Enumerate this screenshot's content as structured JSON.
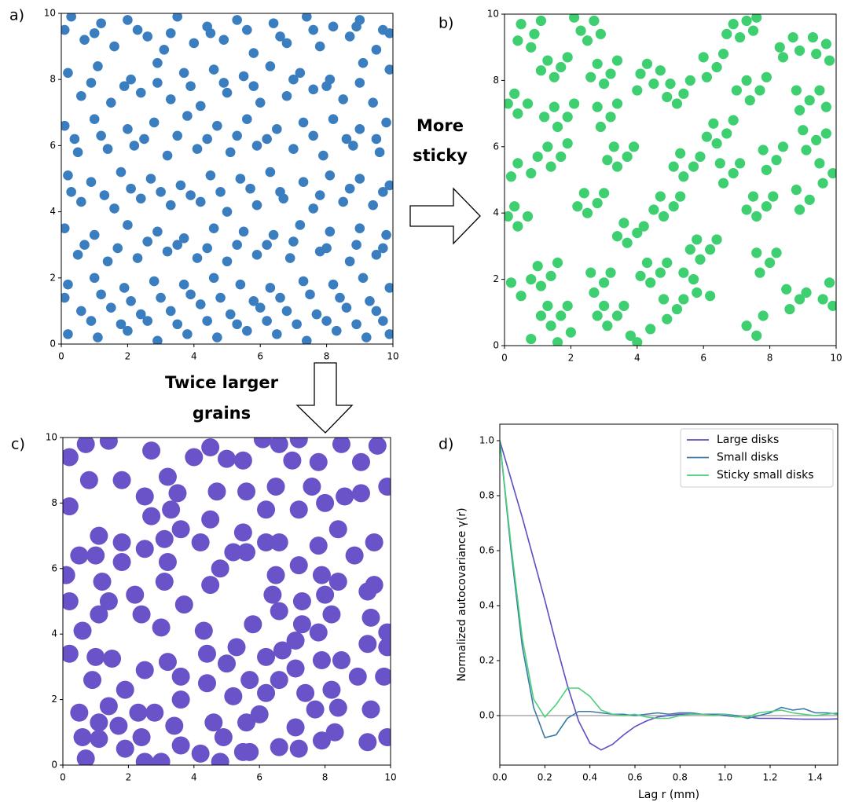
{
  "annotations": [
    [
      "More",
      "sticky"
    ],
    [
      "Twice larger",
      "grains"
    ]
  ],
  "chart_data": [
    {
      "type": "scatter",
      "label": "a)",
      "color": "#3b7ec0",
      "xlim": [
        0,
        10
      ],
      "ylim": [
        0,
        10
      ],
      "xticks": [
        0,
        2,
        4,
        6,
        8,
        10
      ],
      "yticks": [
        0,
        2,
        4,
        6,
        8,
        10
      ],
      "x": [
        0.3,
        1.2,
        2.0,
        3.5,
        4.4,
        5.3,
        6.4,
        7.4,
        8.2,
        9.0,
        9.7,
        0.7,
        1.6,
        2.6,
        3.1,
        4.0,
        4.9,
        5.8,
        6.8,
        7.8,
        8.7,
        9.5,
        0.2,
        1.1,
        2.1,
        2.9,
        3.7,
        4.6,
        5.5,
        6.3,
        7.2,
        8.1,
        9.1,
        9.9,
        0.6,
        1.5,
        2.4,
        3.3,
        4.2,
        5.0,
        6.0,
        6.8,
        7.6,
        8.5,
        9.4,
        0.1,
        1.0,
        2.0,
        2.8,
        3.8,
        4.7,
        5.6,
        6.5,
        7.3,
        8.2,
        9.0,
        9.8,
        0.5,
        1.4,
        2.2,
        3.2,
        4.1,
        5.1,
        5.9,
        7.0,
        7.9,
        8.8,
        9.6,
        0.2,
        0.9,
        1.8,
        2.7,
        3.6,
        4.5,
        5.4,
        6.3,
        7.3,
        8.1,
        9.0,
        9.9,
        0.6,
        1.6,
        2.4,
        3.3,
        4.2,
        5.0,
        5.9,
        6.7,
        7.6,
        8.5,
        9.4,
        0.1,
        1.0,
        2.0,
        2.9,
        3.7,
        4.6,
        5.5,
        6.4,
        7.2,
        8.1,
        9.0,
        9.8,
        0.5,
        1.4,
        2.3,
        3.2,
        4.1,
        5.0,
        5.9,
        6.9,
        7.8,
        8.7,
        9.5,
        0.2,
        1.0,
        1.9,
        2.8,
        3.7,
        4.6,
        5.4,
        6.3,
        7.3,
        8.2,
        9.1,
        9.9,
        0.6,
        1.5,
        2.4,
        3.3,
        4.2,
        5.1,
        6.0,
        6.8,
        7.7,
        8.6,
        9.5,
        0.2,
        1.1,
        2.0,
        2.9,
        3.8,
        4.7,
        5.6,
        6.5,
        7.4,
        8.3,
        9.2,
        9.9,
        0.1,
        1.0,
        2.3,
        3.3,
        4.5,
        5.6,
        6.6,
        7.6,
        8.9,
        9.9,
        0.9,
        1.9,
        2.9,
        3.9,
        4.9,
        5.8,
        7.0,
        8.0,
        9.0,
        0.4,
        1.2,
        2.5,
        3.5,
        4.4,
        5.3,
        6.2,
        7.6,
        8.6,
        9.5,
        0.3,
        1.3,
        2.1,
        3.0,
        3.9,
        4.8,
        5.7,
        6.6,
        7.8,
        8.7,
        9.7,
        0.7,
        1.7,
        2.6,
        3.5,
        4.4,
        5.3,
        6.2,
        7.0,
        8.0,
        8.9,
        9.7,
        0.1,
        1.2,
        2.1,
        3.0,
        3.9,
        4.8,
        5.8,
        6.6,
        7.5,
        8.4,
        9.3,
        0.9,
        1.8,
        2.6,
        3.5,
        4.4,
        5.3,
        6.2,
        7.1,
        8.0,
        8.9,
        9.7
      ],
      "y": [
        9.9,
        9.7,
        9.8,
        9.9,
        9.6,
        9.8,
        9.7,
        9.9,
        9.6,
        9.8,
        9.5,
        9.2,
        9.0,
        9.3,
        8.9,
        9.1,
        9.2,
        8.8,
        9.1,
        9.0,
        9.3,
        8.9,
        8.2,
        8.4,
        8.0,
        8.5,
        8.2,
        8.3,
        8.1,
        8.4,
        8.2,
        8.0,
        8.5,
        8.3,
        7.5,
        7.3,
        7.6,
        7.4,
        7.2,
        7.6,
        7.3,
        7.5,
        7.7,
        7.4,
        7.3,
        6.6,
        6.8,
        6.5,
        6.7,
        6.9,
        6.6,
        6.8,
        6.5,
        6.7,
        6.8,
        6.5,
        6.7,
        5.8,
        5.9,
        6.0,
        5.7,
        5.9,
        5.8,
        6.0,
        5.9,
        5.7,
        6.0,
        5.8,
        5.1,
        4.9,
        5.2,
        5.0,
        4.8,
        5.1,
        5.0,
        5.2,
        4.9,
        5.1,
        5.0,
        4.8,
        4.3,
        4.1,
        4.4,
        4.2,
        4.3,
        4.0,
        4.2,
        4.4,
        4.1,
        4.3,
        4.2,
        3.5,
        3.3,
        3.6,
        3.4,
        3.2,
        3.5,
        3.4,
        3.3,
        3.6,
        3.4,
        3.5,
        3.3,
        2.7,
        2.5,
        2.6,
        2.8,
        2.6,
        2.5,
        2.7,
        2.6,
        2.8,
        2.5,
        2.7,
        1.8,
        2.0,
        1.7,
        1.9,
        1.8,
        2.0,
        1.8,
        1.7,
        1.9,
        1.8,
        2.0,
        1.7,
        1.0,
        1.1,
        0.9,
        1.0,
        1.2,
        0.9,
        1.1,
        1.0,
        0.9,
        1.1,
        1.0,
        0.3,
        0.2,
        0.4,
        0.1,
        0.3,
        0.2,
        0.4,
        0.3,
        0.1,
        0.4,
        0.2,
        0.3,
        9.5,
        9.4,
        9.5,
        9.4,
        9.4,
        9.5,
        9.3,
        9.5,
        9.6,
        9.4,
        7.9,
        7.8,
        7.9,
        7.8,
        7.9,
        7.8,
        8.0,
        7.8,
        7.9,
        6.2,
        6.3,
        6.2,
        6.3,
        6.2,
        6.3,
        6.2,
        6.3,
        6.2,
        6.2,
        4.6,
        4.5,
        4.7,
        4.6,
        4.5,
        4.6,
        4.7,
        4.6,
        4.5,
        4.7,
        4.6,
        3.0,
        2.9,
        3.1,
        3.0,
        2.9,
        3.0,
        3.0,
        3.1,
        2.9,
        3.0,
        2.9,
        1.4,
        1.5,
        1.3,
        1.4,
        1.5,
        1.4,
        1.3,
        1.4,
        1.5,
        1.4,
        1.3,
        0.7,
        0.6,
        0.7,
        0.6,
        0.7,
        0.6,
        0.7,
        0.6,
        0.7,
        0.6,
        0.7
      ]
    },
    {
      "type": "scatter",
      "label": "b)",
      "color": "#3ecf70",
      "xlim": [
        0,
        10
      ],
      "ylim": [
        0,
        10
      ],
      "xticks": [
        0,
        2,
        4,
        6,
        8,
        10
      ],
      "yticks": [
        0,
        2,
        4,
        6,
        8,
        10
      ],
      "x": [
        0.5,
        0.9,
        1.1,
        0.4,
        0.8,
        2.3,
        2.7,
        2.5,
        2.9,
        2.1,
        1.3,
        1.7,
        1.5,
        1.9,
        1.1,
        2.8,
        3.2,
        3.0,
        3.4,
        2.6,
        4.1,
        4.5,
        4.3,
        4.0,
        4.7,
        0.3,
        0.7,
        0.4,
        0.1,
        1.5,
        1.9,
        1.6,
        2.1,
        1.2,
        2.8,
        3.2,
        2.9,
        3.4,
        5.0,
        5.4,
        5.2,
        5.6,
        4.9,
        6.0,
        6.4,
        6.1,
        6.6,
        6.9,
        7.3,
        7.1,
        7.5,
        6.7,
        7.6,
        8.3,
        8.7,
        8.4,
        8.9,
        9.4,
        9.7,
        9.8,
        9.3,
        7.3,
        7.7,
        7.4,
        7.9,
        7.0,
        8.8,
        9.2,
        8.9,
        9.5,
        9.7,
        9.0,
        9.4,
        9.1,
        9.7,
        6.3,
        6.7,
        6.4,
        6.9,
        6.1,
        1.3,
        1.7,
        1.4,
        1.9,
        1.0,
        3.3,
        3.7,
        3.4,
        3.9,
        3.1,
        0.4,
        0.8,
        0.2,
        5.3,
        5.7,
        5.4,
        5.9,
        5.1,
        6.5,
        6.9,
        6.6,
        7.1,
        7.8,
        8.2,
        7.9,
        8.4,
        9.5,
        9.9,
        9.6,
        2.4,
        2.8,
        2.5,
        3.0,
        2.2,
        4.7,
        5.1,
        4.8,
        5.3,
        4.5,
        7.5,
        7.9,
        7.6,
        8.1,
        7.3,
        0.3,
        0.7,
        0.4,
        0.1,
        3.6,
        4.0,
        3.7,
        4.2,
        3.4,
        5.8,
        6.2,
        5.9,
        6.4,
        5.6,
        8.8,
        9.2,
        8.9,
        1.0,
        1.4,
        1.1,
        1.6,
        0.8,
        2.6,
        3.0,
        2.7,
        3.2,
        4.3,
        4.7,
        4.4,
        4.9,
        4.1,
        5.4,
        5.7,
        7.6,
        8.0,
        7.7,
        8.2,
        8.5,
        8.9,
        8.6,
        9.1,
        1.3,
        1.7,
        1.4,
        1.9,
        1.1,
        3.0,
        3.4,
        3.1,
        3.6,
        2.8,
        4.8,
        5.2,
        4.9,
        5.4,
        5.8,
        6.2,
        7.3,
        7.6,
        7.8,
        0.2,
        0.5,
        4.0,
        4.4,
        3.8,
        1.6,
        2.0,
        0.8,
        9.8,
        9.6,
        9.9
      ],
      "y": [
        9.7,
        9.4,
        9.8,
        9.2,
        9.0,
        9.5,
        9.8,
        9.2,
        9.4,
        9.9,
        8.6,
        8.4,
        8.1,
        8.7,
        8.3,
        8.5,
        8.2,
        7.9,
        8.6,
        8.1,
        8.2,
        7.9,
        8.5,
        7.7,
        8.3,
        7.6,
        7.3,
        7.0,
        7.3,
        7.2,
        6.9,
        6.6,
        7.3,
        6.9,
        7.2,
        6.9,
        6.6,
        7.3,
        7.9,
        7.6,
        7.3,
        8.0,
        7.5,
        8.7,
        8.4,
        8.1,
        8.8,
        9.7,
        9.8,
        9.3,
        9.5,
        9.4,
        9.9,
        9.0,
        9.3,
        8.7,
        8.9,
        8.8,
        9.1,
        8.6,
        9.3,
        8.0,
        7.7,
        7.4,
        8.1,
        7.7,
        7.7,
        7.4,
        7.1,
        7.7,
        7.2,
        6.5,
        6.2,
        5.9,
        6.4,
        6.7,
        6.4,
        6.1,
        6.8,
        6.3,
        6.0,
        5.7,
        5.4,
        6.1,
        5.7,
        6.0,
        5.7,
        5.4,
        6.0,
        5.6,
        5.5,
        5.2,
        5.1,
        5.8,
        5.4,
        5.1,
        5.7,
        5.4,
        5.5,
        5.2,
        4.9,
        5.5,
        5.9,
        5.6,
        5.3,
        6.0,
        5.5,
        5.2,
        4.9,
        4.6,
        4.3,
        4.0,
        4.6,
        4.2,
        4.5,
        4.2,
        3.9,
        4.5,
        4.1,
        4.5,
        4.2,
        3.9,
        4.5,
        4.1,
        4.2,
        3.9,
        3.6,
        3.9,
        3.7,
        3.4,
        3.1,
        3.6,
        3.3,
        3.2,
        2.9,
        2.6,
        3.2,
        2.9,
        4.7,
        4.4,
        4.1,
        2.4,
        2.1,
        1.8,
        2.5,
        2.0,
        2.2,
        1.9,
        1.6,
        2.2,
        2.5,
        2.2,
        1.9,
        2.5,
        2.1,
        2.2,
        2.0,
        2.8,
        2.5,
        2.2,
        2.8,
        1.7,
        1.4,
        1.1,
        1.6,
        1.2,
        0.9,
        0.6,
        1.2,
        0.9,
        1.2,
        0.9,
        0.6,
        1.2,
        0.9,
        1.4,
        1.1,
        0.8,
        1.4,
        1.6,
        1.5,
        0.6,
        0.3,
        0.9,
        1.9,
        1.5,
        0.1,
        0.5,
        0.3,
        0.1,
        0.4,
        0.2,
        1.9,
        1.4,
        1.2
      ]
    },
    {
      "type": "scatter",
      "label": "c)",
      "color": "#6a52c8",
      "xlim": [
        0,
        10
      ],
      "ylim": [
        0,
        10
      ],
      "xticks": [
        0,
        2,
        4,
        6,
        8,
        10
      ],
      "yticks": [
        0,
        2,
        4,
        6,
        8,
        10
      ],
      "x": [
        0.2,
        0.7,
        1.4,
        2.7,
        4.0,
        4.5,
        5.0,
        5.5,
        6.1,
        6.6,
        7.0,
        7.2,
        7.8,
        8.5,
        9.1,
        9.6,
        0.8,
        1.8,
        3.2,
        3.5,
        2.5,
        4.7,
        5.6,
        6.5,
        7.6,
        8.0,
        8.6,
        9.1,
        9.9,
        0.2,
        2.7,
        3.3,
        3.6,
        4.5,
        5.5,
        6.2,
        7.2,
        8.4,
        1.1,
        3.1,
        0.5,
        1.0,
        1.8,
        2.5,
        3.2,
        4.2,
        5.2,
        5.6,
        6.2,
        6.6,
        7.8,
        8.9,
        9.5,
        1.8,
        0.1,
        1.2,
        3.1,
        4.5,
        4.8,
        6.5,
        7.2,
        7.9,
        8.4,
        9.3,
        9.5,
        2.2,
        0.2,
        1.4,
        3.7,
        6.4,
        7.3,
        8.0,
        2.4,
        6.6,
        8.2,
        9.4,
        1.1,
        5.8,
        7.3,
        0.6,
        4.3,
        7.8,
        9.9,
        0.2,
        1.0,
        1.5,
        2.5,
        3.2,
        4.4,
        5.3,
        6.2,
        6.7,
        7.1,
        7.9,
        8.5,
        9.3,
        9.9,
        3.0,
        0.9,
        1.9,
        3.6,
        4.4,
        5.0,
        5.7,
        6.6,
        7.1,
        8.2,
        9.0,
        9.8,
        0.5,
        1.1,
        1.4,
        1.7,
        2.3,
        2.8,
        3.6,
        5.2,
        6.2,
        7.4,
        7.7,
        8.4,
        9.4,
        6.0,
        5.6,
        4.6,
        3.4,
        7.1,
        0.6,
        1.1,
        1.9,
        2.4,
        3.6,
        4.9,
        5.7,
        6.6,
        7.2,
        7.9,
        8.3,
        9.3,
        9.9,
        0.7,
        2.5,
        3.0,
        4.2,
        4.8,
        5.5
      ],
      "y": [
        9.4,
        9.8,
        9.9,
        9.6,
        9.4,
        9.7,
        9.35,
        9.3,
        9.95,
        9.8,
        9.3,
        9.95,
        9.25,
        9.8,
        9.25,
        9.75,
        8.7,
        8.7,
        8.8,
        8.3,
        8.2,
        8.35,
        8.35,
        8.5,
        8.5,
        8.0,
        8.2,
        8.3,
        8.5,
        7.9,
        7.6,
        7.8,
        7.2,
        7.5,
        7.1,
        7.8,
        7.8,
        7.2,
        7.0,
        6.9,
        6.4,
        6.4,
        6.8,
        6.6,
        6.2,
        6.8,
        6.5,
        6.5,
        6.8,
        6.8,
        6.7,
        6.4,
        6.8,
        6.2,
        5.8,
        5.6,
        5.6,
        5.5,
        6.0,
        5.8,
        6.1,
        5.8,
        5.6,
        5.3,
        5.5,
        5.2,
        5.0,
        5.0,
        4.9,
        5.2,
        5.0,
        5.2,
        4.6,
        4.7,
        4.6,
        4.5,
        4.6,
        4.3,
        4.3,
        4.1,
        4.1,
        4.05,
        4.05,
        3.4,
        3.3,
        3.25,
        2.9,
        3.15,
        3.4,
        3.6,
        3.3,
        3.5,
        3.8,
        3.2,
        3.2,
        3.7,
        3.6,
        4.2,
        2.6,
        2.3,
        2.7,
        2.5,
        3.1,
        2.6,
        2.6,
        2.95,
        2.3,
        2.7,
        2.7,
        1.6,
        1.3,
        1.8,
        1.2,
        1.6,
        1.6,
        2.0,
        2.1,
        2.2,
        2.2,
        1.7,
        1.75,
        1.7,
        1.55,
        1.3,
        1.3,
        1.2,
        1.15,
        0.85,
        0.8,
        0.5,
        0.85,
        0.6,
        0.85,
        0.4,
        0.55,
        0.5,
        0.75,
        1.0,
        0.7,
        0.85,
        0.2,
        0.1,
        0.1,
        0.35,
        0.1,
        0.4
      ]
    },
    {
      "type": "line",
      "label": "d)",
      "x_label": "Lag r (mm)",
      "y_label": "Normalized autocovariance γ(r)",
      "xlim": [
        0,
        1.5
      ],
      "ylim": [
        -0.18,
        1.06
      ],
      "xticks": [
        {
          "value": 0,
          "label": "0.0"
        },
        0.2,
        0.4,
        0.6,
        0.8,
        {
          "value": 1,
          "label": "1.0"
        },
        1.2,
        1.4
      ],
      "yticks": [
        {
          "value": 0,
          "label": "0.0"
        },
        0.2,
        0.4,
        0.6,
        0.8,
        {
          "value": 1,
          "label": "1.0"
        }
      ],
      "reference_line": 0,
      "reference_color": "#aaaaaa",
      "legend": "upper right",
      "x": [
        0,
        0.05,
        0.1,
        0.15,
        0.2,
        0.25,
        0.3,
        0.35,
        0.4,
        0.45,
        0.5,
        0.55,
        0.6,
        0.65,
        0.7,
        0.75,
        0.8,
        0.85,
        0.9,
        0.95,
        1.0,
        1.05,
        1.1,
        1.15,
        1.2,
        1.25,
        1.3,
        1.35,
        1.4,
        1.45,
        1.5
      ],
      "series": [
        {
          "name": "Large disks",
          "color": "#5b4fc0",
          "values": [
            1.0,
            0.86,
            0.72,
            0.57,
            0.42,
            0.26,
            0.11,
            -0.02,
            -0.1,
            -0.125,
            -0.105,
            -0.07,
            -0.04,
            -0.02,
            -0.005,
            0.0,
            0.005,
            0.005,
            0.005,
            0.005,
            0.0,
            -0.005,
            -0.005,
            -0.01,
            -0.01,
            -0.01,
            -0.012,
            -0.013,
            -0.013,
            -0.013,
            -0.012
          ]
        },
        {
          "name": "Small disks",
          "color": "#3a7aa8",
          "values": [
            1.0,
            0.6,
            0.25,
            0.03,
            -0.08,
            -0.07,
            -0.01,
            0.015,
            0.015,
            0.01,
            0.005,
            0.005,
            0.0,
            0.005,
            0.01,
            0.005,
            0.01,
            0.01,
            0.005,
            0.005,
            0.005,
            0.0,
            -0.01,
            0.0,
            0.01,
            0.03,
            0.02,
            0.025,
            0.01,
            0.01,
            0.005
          ]
        },
        {
          "name": "Sticky small disks",
          "color": "#4cd07a",
          "values": [
            1.0,
            0.62,
            0.28,
            0.06,
            -0.005,
            0.04,
            0.1,
            0.1,
            0.07,
            0.02,
            0.005,
            0.0,
            0.005,
            -0.005,
            -0.01,
            -0.01,
            0.0,
            0.005,
            0.005,
            0.0,
            0.005,
            -0.005,
            -0.005,
            0.01,
            0.015,
            0.02,
            0.01,
            0.005,
            0.0,
            0.005,
            0.01
          ]
        }
      ]
    }
  ]
}
